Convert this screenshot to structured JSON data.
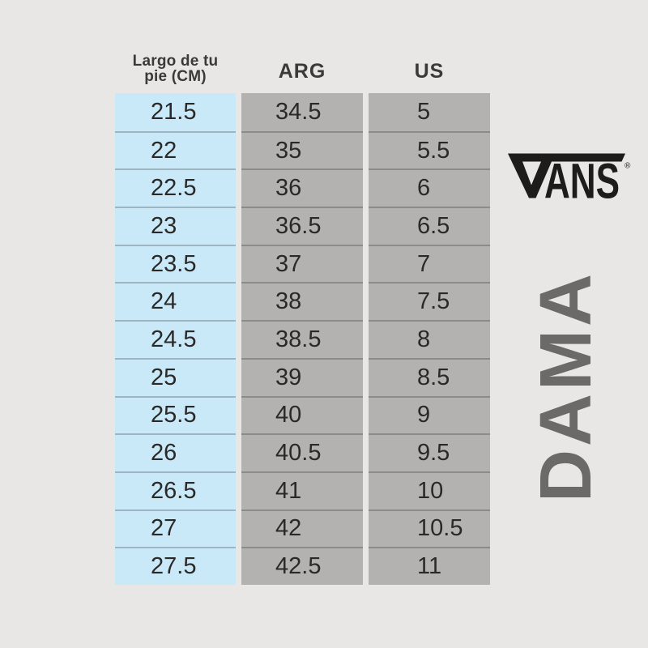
{
  "colors": {
    "background": "#e8e7e5",
    "cm_column": "#c9e8f8",
    "size_columns": "#b3b2b1",
    "row_divider": "rgba(0,0,0,0.22)",
    "body_text": "#2a2928",
    "header_text": "#3b3a38",
    "logo": "#1d1c1a",
    "side_label": "#6b6a69"
  },
  "table": {
    "headers": [
      {
        "label": "Largo de tu pie (CM)",
        "line1": "Largo de tu",
        "line2": "pie (CM)"
      },
      {
        "label": "ARG"
      },
      {
        "label": "US"
      }
    ]
  },
  "branding": {
    "logo_text": "VANS",
    "logo_letters_ans": "ANS",
    "registered": "®",
    "side_label": "DAMA"
  },
  "chart_data": {
    "type": "table",
    "columns": [
      "Largo de tu pie (CM)",
      "ARG",
      "US"
    ],
    "rows": [
      [
        "21.5",
        "34.5",
        "5"
      ],
      [
        "22",
        "35",
        "5.5"
      ],
      [
        "22.5",
        "36",
        "6"
      ],
      [
        "23",
        "36.5",
        "6.5"
      ],
      [
        "23.5",
        "37",
        "7"
      ],
      [
        "24",
        "38",
        "7.5"
      ],
      [
        "24.5",
        "38.5",
        "8"
      ],
      [
        "25",
        "39",
        "8.5"
      ],
      [
        "25.5",
        "40",
        "9"
      ],
      [
        "26",
        "40.5",
        "9.5"
      ],
      [
        "26.5",
        "41",
        "10"
      ],
      [
        "27",
        "42",
        "10.5"
      ],
      [
        "27.5",
        "42.5",
        "11"
      ]
    ]
  }
}
